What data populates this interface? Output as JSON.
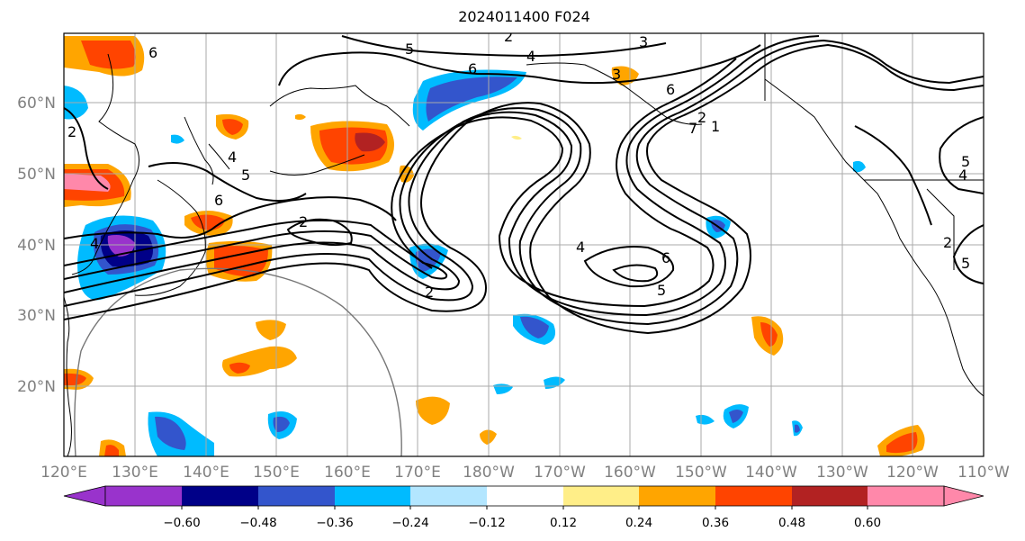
{
  "title": "2024011400 F024",
  "map": {
    "projection": "cylindrical",
    "lon_range": [
      "120°E",
      "110°W"
    ],
    "lat_range": [
      "10°N",
      "70°N"
    ],
    "gridlines": true,
    "lat_labels": [
      "60°N",
      "50°N",
      "40°N",
      "30°N",
      "20°N"
    ],
    "lon_labels": [
      "120°E",
      "130°E",
      "140°E",
      "150°E",
      "160°E",
      "170°E",
      "180°W",
      "170°W",
      "160°W",
      "150°W",
      "140°W",
      "130°W",
      "120°W",
      "110°W"
    ],
    "contour_labels": [
      "2",
      "3",
      "4",
      "5",
      "6",
      "7",
      "1",
      "2",
      "3",
      "4",
      "5",
      "6",
      "2",
      "5",
      "4",
      "6",
      "6",
      "5",
      "4",
      "2",
      "2",
      "4",
      "6",
      "5",
      "2"
    ],
    "contour_color": "#000000"
  },
  "colorbar": {
    "colors": [
      "#9933cc",
      "#000088",
      "#3355cc",
      "#00bbff",
      "#b3e6ff",
      "#ffffff",
      "#ffee88",
      "#ffa500",
      "#ff4400",
      "#b22222",
      "#ff88aa"
    ],
    "tick_labels": [
      "−0.60",
      "−0.48",
      "−0.36",
      "−0.24",
      "−0.12",
      "0.12",
      "0.24",
      "0.36",
      "0.48",
      "0.60"
    ],
    "extend": "both"
  }
}
